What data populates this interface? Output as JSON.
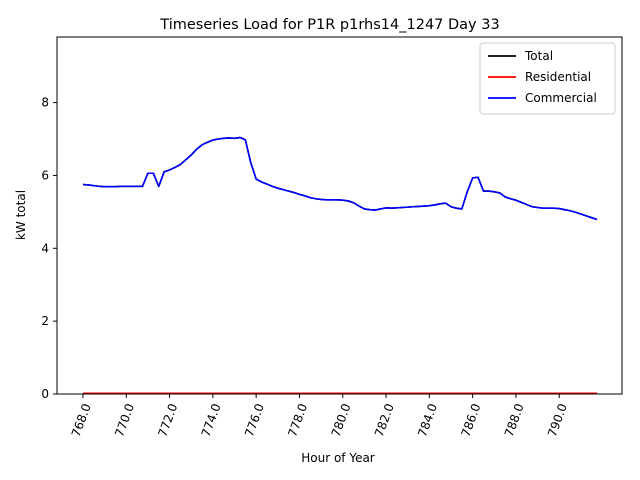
{
  "chart_data": {
    "type": "line",
    "title": "Timeseries Load for P1R p1rhs14_1247  Day 33",
    "xlabel": "Hour of Year",
    "ylabel": "kW total",
    "xlim": [
      766.8,
      792.9
    ],
    "ylim": [
      0,
      9.8
    ],
    "xticks": [
      768,
      770,
      772,
      774,
      776,
      778,
      780,
      782,
      784,
      786,
      788,
      790
    ],
    "xtick_labels": [
      "768.0",
      "770.0",
      "772.0",
      "774.0",
      "776.0",
      "778.0",
      "780.0",
      "782.0",
      "784.0",
      "786.0",
      "788.0",
      "790.0"
    ],
    "yticks": [
      0,
      2,
      4,
      6,
      8
    ],
    "ytick_labels": [
      "0",
      "2",
      "4",
      "6",
      "8"
    ],
    "grid": false,
    "legend_position": "top-right",
    "x": [
      768.0,
      768.25,
      768.5,
      768.75,
      769.0,
      769.25,
      769.5,
      769.75,
      770.0,
      770.25,
      770.5,
      770.75,
      771.0,
      771.25,
      771.5,
      771.75,
      772.0,
      772.25,
      772.5,
      772.75,
      773.0,
      773.25,
      773.5,
      773.75,
      774.0,
      774.25,
      774.5,
      774.75,
      775.0,
      775.25,
      775.5,
      775.75,
      776.0,
      776.25,
      776.5,
      776.75,
      777.0,
      777.25,
      777.5,
      777.75,
      778.0,
      778.25,
      778.5,
      778.75,
      779.0,
      779.25,
      779.5,
      779.75,
      780.0,
      780.25,
      780.5,
      780.75,
      781.0,
      781.25,
      781.5,
      781.75,
      782.0,
      782.25,
      782.5,
      782.75,
      783.0,
      783.25,
      783.5,
      783.75,
      784.0,
      784.25,
      784.5,
      784.75,
      785.0,
      785.25,
      785.5,
      785.75,
      786.0,
      786.25,
      786.5,
      786.75,
      787.0,
      787.25,
      787.5,
      787.75,
      788.0,
      788.25,
      788.5,
      788.75,
      789.0,
      789.25,
      789.5,
      789.75,
      790.0,
      790.25,
      790.5,
      790.75,
      791.0,
      791.25,
      791.5,
      791.75
    ],
    "series": [
      {
        "name": "Total",
        "color": "#000000",
        "values": [
          5.75,
          5.74,
          5.72,
          5.7,
          5.69,
          5.69,
          5.69,
          5.7,
          5.7,
          5.7,
          5.7,
          5.7,
          6.06,
          6.06,
          5.7,
          6.1,
          6.15,
          6.22,
          6.3,
          6.43,
          6.56,
          6.72,
          6.84,
          6.91,
          6.97,
          7.0,
          7.02,
          7.03,
          7.02,
          7.04,
          6.98,
          6.35,
          5.9,
          5.82,
          5.76,
          5.7,
          5.65,
          5.61,
          5.57,
          5.53,
          5.48,
          5.44,
          5.39,
          5.36,
          5.34,
          5.33,
          5.33,
          5.33,
          5.32,
          5.3,
          5.25,
          5.16,
          5.08,
          5.06,
          5.05,
          5.08,
          5.11,
          5.1,
          5.11,
          5.12,
          5.13,
          5.14,
          5.15,
          5.16,
          5.17,
          5.19,
          5.22,
          5.24,
          5.14,
          5.1,
          5.08,
          5.55,
          5.93,
          5.95,
          5.57,
          5.57,
          5.55,
          5.52,
          5.41,
          5.36,
          5.32,
          5.26,
          5.2,
          5.14,
          5.12,
          5.1,
          5.1,
          5.1,
          5.09,
          5.06,
          5.03,
          4.99,
          4.94,
          4.89,
          4.84,
          4.79
        ]
      },
      {
        "name": "Residential",
        "color": "#ff0000",
        "values": [
          0.02,
          0.02,
          0.02,
          0.02,
          0.02,
          0.02,
          0.02,
          0.02,
          0.02,
          0.02,
          0.02,
          0.02,
          0.02,
          0.02,
          0.02,
          0.02,
          0.02,
          0.02,
          0.02,
          0.02,
          0.02,
          0.02,
          0.02,
          0.02,
          0.02,
          0.02,
          0.02,
          0.02,
          0.02,
          0.02,
          0.02,
          0.02,
          0.02,
          0.02,
          0.02,
          0.02,
          0.02,
          0.02,
          0.02,
          0.02,
          0.02,
          0.02,
          0.02,
          0.02,
          0.02,
          0.02,
          0.02,
          0.02,
          0.02,
          0.02,
          0.02,
          0.02,
          0.02,
          0.02,
          0.02,
          0.02,
          0.02,
          0.02,
          0.02,
          0.02,
          0.02,
          0.02,
          0.02,
          0.02,
          0.02,
          0.02,
          0.02,
          0.02,
          0.02,
          0.02,
          0.02,
          0.02,
          0.02,
          0.02,
          0.02,
          0.02,
          0.02,
          0.02,
          0.02,
          0.02,
          0.02,
          0.02,
          0.02,
          0.02,
          0.02,
          0.02,
          0.02,
          0.02,
          0.02,
          0.02,
          0.02,
          0.02,
          0.02,
          0.02,
          0.02,
          0.02
        ]
      },
      {
        "name": "Commercial",
        "color": "#0000ff",
        "values": [
          5.75,
          5.74,
          5.72,
          5.7,
          5.69,
          5.69,
          5.69,
          5.7,
          5.7,
          5.7,
          5.7,
          5.7,
          6.06,
          6.06,
          5.7,
          6.1,
          6.15,
          6.22,
          6.3,
          6.43,
          6.56,
          6.72,
          6.84,
          6.91,
          6.97,
          7.0,
          7.02,
          7.03,
          7.02,
          7.04,
          6.98,
          6.35,
          5.9,
          5.82,
          5.76,
          5.7,
          5.65,
          5.61,
          5.57,
          5.53,
          5.48,
          5.44,
          5.39,
          5.36,
          5.34,
          5.33,
          5.33,
          5.33,
          5.32,
          5.3,
          5.25,
          5.16,
          5.08,
          5.06,
          5.05,
          5.08,
          5.11,
          5.1,
          5.11,
          5.12,
          5.13,
          5.14,
          5.15,
          5.16,
          5.17,
          5.19,
          5.22,
          5.24,
          5.14,
          5.1,
          5.08,
          5.55,
          5.93,
          5.95,
          5.57,
          5.57,
          5.55,
          5.52,
          5.41,
          5.36,
          5.32,
          5.26,
          5.2,
          5.14,
          5.12,
          5.1,
          5.1,
          5.1,
          5.09,
          5.06,
          5.03,
          4.99,
          4.94,
          4.89,
          4.84,
          4.79
        ]
      }
    ]
  }
}
